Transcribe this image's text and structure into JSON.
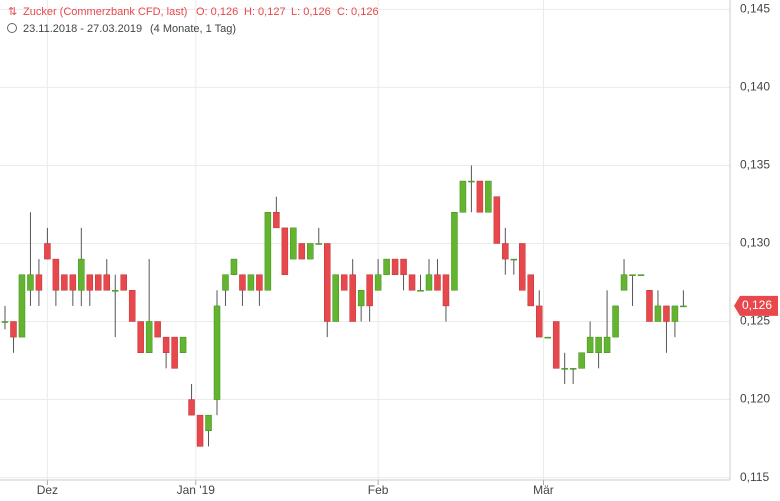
{
  "chart_data": {
    "type": "candlestick",
    "title": "Zucker (Commerzbank CFD, last)",
    "ohlc_summary": [
      "O: 0,126",
      "H: 0,127",
      "L: 0,126",
      "C: 0,126"
    ],
    "date_range": "23.11.2018 - 27.03.2019",
    "period": "(4 Monate, 1 Tag)",
    "open": [
      0.125,
      0.125,
      0.124,
      0.127,
      0.128,
      0.13,
      0.129,
      0.128,
      0.128,
      0.127,
      0.128,
      0.128,
      0.128,
      0.127,
      0.128,
      0.127,
      0.125,
      0.123,
      0.125,
      0.124,
      0.124,
      0.123,
      0.12,
      0.119,
      0.118,
      0.12,
      0.127,
      0.128,
      0.128,
      0.127,
      0.128,
      0.127,
      0.132,
      0.131,
      0.129,
      0.13,
      0.129,
      0.13,
      0.13,
      0.125,
      0.128,
      0.128,
      0.126,
      0.128,
      0.127,
      0.128,
      0.129,
      0.129,
      0.128,
      0.127,
      0.127,
      0.128,
      0.128,
      0.127,
      0.132,
      0.134,
      0.134,
      0.132,
      0.133,
      0.13,
      0.129,
      0.13,
      0.128,
      0.126,
      0.124,
      0.125,
      0.122,
      0.122,
      0.122,
      0.123,
      0.123,
      0.123,
      0.124,
      0.127,
      0.128,
      0.128,
      0.127,
      0.125,
      0.126,
      0.125,
      0.126
    ],
    "high": [
      0.126,
      0.125,
      0.128,
      0.132,
      0.129,
      0.131,
      0.129,
      0.128,
      0.128,
      0.131,
      0.128,
      0.128,
      0.129,
      0.128,
      0.128,
      0.127,
      0.125,
      0.129,
      0.125,
      0.124,
      0.124,
      0.124,
      0.121,
      0.119,
      0.119,
      0.127,
      0.128,
      0.129,
      0.128,
      0.128,
      0.128,
      0.132,
      0.133,
      0.131,
      0.131,
      0.13,
      0.13,
      0.131,
      0.13,
      0.128,
      0.128,
      0.129,
      0.127,
      0.128,
      0.129,
      0.129,
      0.129,
      0.129,
      0.128,
      0.128,
      0.129,
      0.129,
      0.128,
      0.132,
      0.134,
      0.135,
      0.134,
      0.134,
      0.133,
      0.131,
      0.129,
      0.13,
      0.128,
      0.127,
      0.124,
      0.125,
      0.123,
      0.122,
      0.123,
      0.125,
      0.124,
      0.127,
      0.126,
      0.129,
      0.128,
      0.128,
      0.127,
      0.127,
      0.126,
      0.126,
      0.127
    ],
    "low": [
      0.1245,
      0.123,
      0.124,
      0.126,
      0.126,
      0.129,
      0.126,
      0.127,
      0.126,
      0.126,
      0.126,
      0.127,
      0.127,
      0.124,
      0.127,
      0.125,
      0.123,
      0.123,
      0.124,
      0.122,
      0.122,
      0.123,
      0.119,
      0.117,
      0.117,
      0.119,
      0.126,
      0.128,
      0.126,
      0.127,
      0.126,
      0.127,
      0.131,
      0.128,
      0.129,
      0.129,
      0.129,
      0.13,
      0.124,
      0.125,
      0.127,
      0.125,
      0.125,
      0.125,
      0.127,
      0.128,
      0.128,
      0.127,
      0.127,
      0.127,
      0.127,
      0.127,
      0.125,
      0.127,
      0.132,
      0.132,
      0.132,
      0.132,
      0.13,
      0.128,
      0.128,
      0.127,
      0.126,
      0.124,
      0.124,
      0.122,
      0.121,
      0.121,
      0.122,
      0.123,
      0.122,
      0.123,
      0.124,
      0.127,
      0.126,
      0.128,
      0.125,
      0.125,
      0.123,
      0.124,
      0.126
    ],
    "close": [
      0.125,
      0.124,
      0.128,
      0.128,
      0.127,
      0.129,
      0.127,
      0.127,
      0.127,
      0.129,
      0.127,
      0.127,
      0.127,
      0.127,
      0.127,
      0.125,
      0.123,
      0.125,
      0.124,
      0.123,
      0.122,
      0.124,
      0.119,
      0.117,
      0.119,
      0.126,
      0.128,
      0.129,
      0.127,
      0.128,
      0.127,
      0.132,
      0.131,
      0.128,
      0.131,
      0.129,
      0.13,
      0.13,
      0.125,
      0.128,
      0.127,
      0.125,
      0.127,
      0.126,
      0.128,
      0.129,
      0.128,
      0.128,
      0.127,
      0.127,
      0.128,
      0.127,
      0.126,
      0.132,
      0.134,
      0.134,
      0.132,
      0.134,
      0.13,
      0.129,
      0.129,
      0.127,
      0.126,
      0.124,
      0.124,
      0.122,
      0.122,
      0.122,
      0.123,
      0.124,
      0.124,
      0.124,
      0.126,
      0.128,
      0.128,
      0.128,
      0.125,
      0.126,
      0.125,
      0.126,
      0.126
    ],
    "up_color": "#63b52f",
    "down_color": "#e8484c",
    "ylim": [
      0.1135,
      0.1456
    ],
    "yticks": [
      {
        "value": 0.115,
        "label": "0,115"
      },
      {
        "value": 0.12,
        "label": "0,120"
      },
      {
        "value": 0.125,
        "label": "0,125"
      },
      {
        "value": 0.13,
        "label": "0,130"
      },
      {
        "value": 0.135,
        "label": "0,135"
      },
      {
        "value": 0.14,
        "label": "0,140"
      },
      {
        "value": 0.145,
        "label": "0,145"
      }
    ],
    "xticks": [
      {
        "value": 5,
        "label": "Dez"
      },
      {
        "value": 22.5,
        "label": "Jan '19"
      },
      {
        "value": 44,
        "label": "Feb"
      },
      {
        "value": 63.5,
        "label": "Mär"
      }
    ],
    "last_price": {
      "value": 0.126,
      "label": "0,126"
    },
    "grid": true
  }
}
